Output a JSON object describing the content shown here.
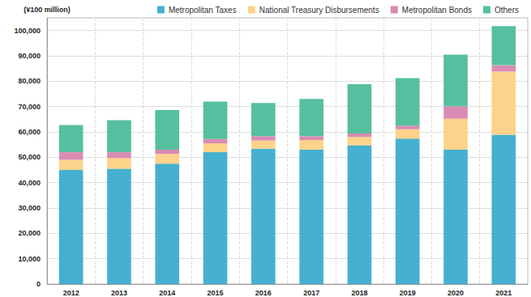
{
  "chart_data": {
    "type": "bar",
    "stacked": true,
    "y_label": "(¥100 million)",
    "categories": [
      "2012",
      "2013",
      "2014",
      "2015",
      "2016",
      "2017",
      "2018",
      "2019",
      "2020",
      "2021"
    ],
    "series": [
      {
        "name": "Metropolitan Taxes",
        "color": "#45b0cf",
        "values": [
          45000,
          45500,
          47500,
          52000,
          53400,
          53000,
          54700,
          57400,
          53000,
          58900
        ]
      },
      {
        "name": "National Treasury Disbursements",
        "color": "#fdd28a",
        "values": [
          4000,
          4200,
          3800,
          3500,
          3200,
          3800,
          3300,
          3600,
          12200,
          24900
        ]
      },
      {
        "name": "Metropolitan Bonds",
        "color": "#d98cb3",
        "values": [
          3000,
          2300,
          1700,
          1700,
          1700,
          1500,
          1400,
          1500,
          4900,
          2500
        ]
      },
      {
        "name": "Others",
        "color": "#56bfa0",
        "values": [
          10700,
          12600,
          15600,
          14800,
          13100,
          14700,
          19400,
          18700,
          20400,
          15400
        ]
      }
    ],
    "ylim": [
      0,
      105000
    ],
    "yticks": [
      0,
      {
        "value": 10000,
        "label": "10,000"
      },
      {
        "value": 20000,
        "label": "20,000"
      },
      {
        "value": 30000,
        "label": "30,000"
      },
      {
        "value": 40000,
        "label": "40,000"
      },
      {
        "value": 50000,
        "label": "50,000"
      },
      {
        "value": 60000,
        "label": "60,000"
      },
      {
        "value": 70000,
        "label": "70,000"
      },
      {
        "value": 80000,
        "label": "80,000"
      },
      {
        "value": 90000,
        "label": "90,000"
      },
      {
        "value": 100000,
        "label": "100,000"
      }
    ],
    "grid": true,
    "legend": "top-right"
  }
}
